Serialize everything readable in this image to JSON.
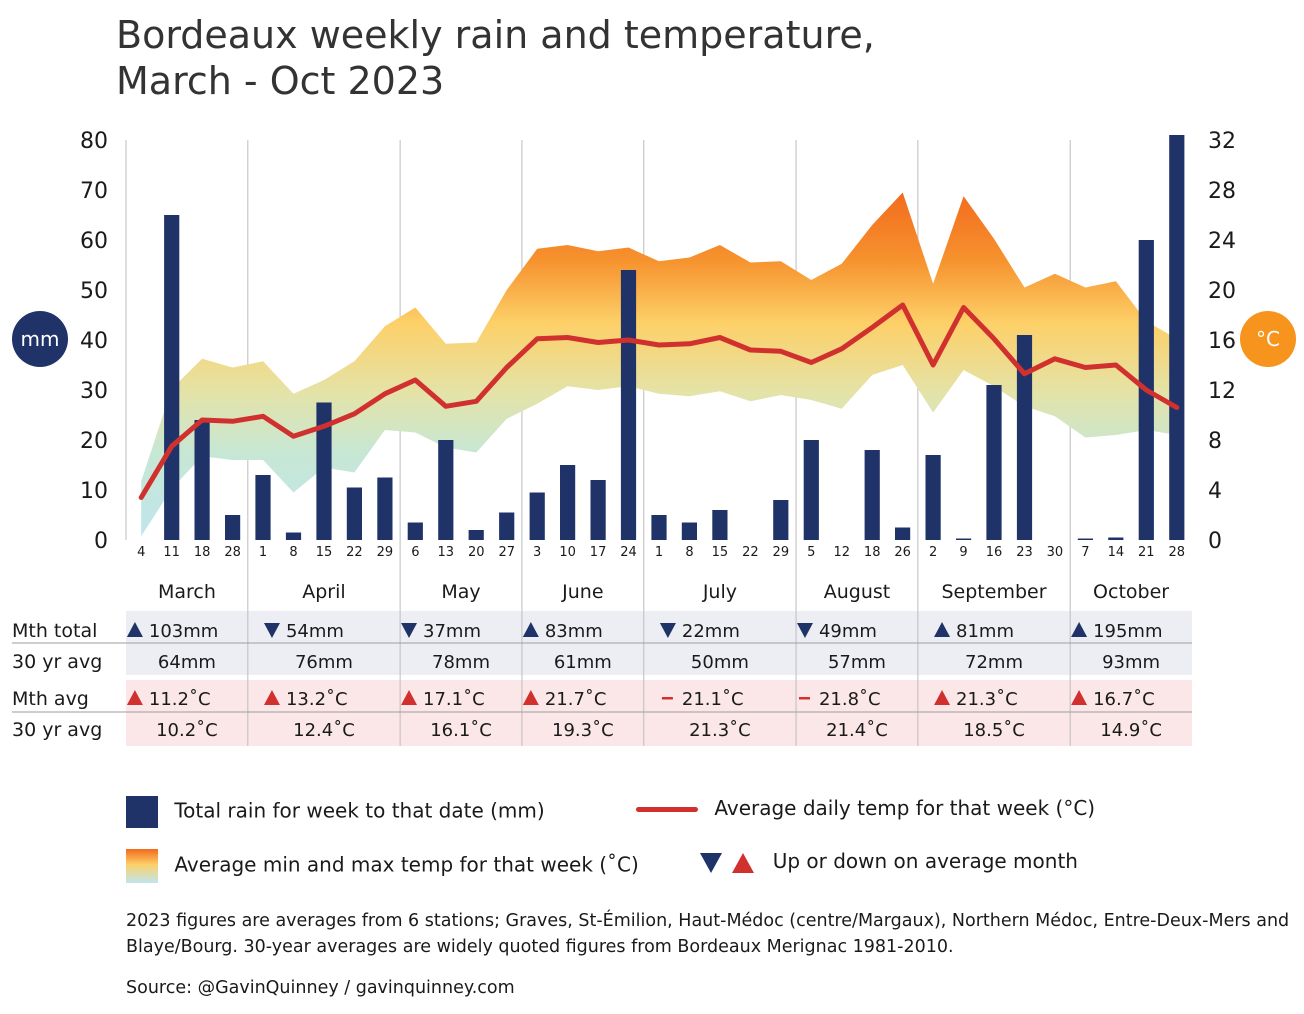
{
  "title_line1": "Bordeaux weekly rain and temperature,",
  "title_line2": "March - Oct 2023",
  "left_axis_badge": "mm",
  "right_axis_badge": "°C",
  "colors": {
    "rain_bar": "#1f3368",
    "avg_temp_line": "#d1312e",
    "band_hot": "#f26a1d",
    "band_mid": "#fdd068",
    "band_cool": "#bfe6ee",
    "up_marker": "#d1312e",
    "down_marker": "#1f3368",
    "mm_badge": "#1f3368",
    "c_badge": "#f7941d",
    "rain_row_bg": "#edeef3",
    "temp_row_bg": "#fbe7e7"
  },
  "chart_data": {
    "type": "bar",
    "x_ticks": [
      "4",
      "11",
      "18",
      "28",
      "1",
      "8",
      "15",
      "22",
      "29",
      "6",
      "13",
      "20",
      "27",
      "3",
      "10",
      "17",
      "24",
      "1",
      "8",
      "15",
      "22",
      "29",
      "5",
      "12",
      "18",
      "26",
      "2",
      "9",
      "16",
      "23",
      "30",
      "7",
      "14",
      "21",
      "28"
    ],
    "months": [
      "March",
      "April",
      "May",
      "June",
      "July",
      "August",
      "September",
      "October"
    ],
    "month_week_counts": [
      4,
      5,
      4,
      4,
      5,
      4,
      5,
      4
    ],
    "y_left": {
      "label": "mm",
      "min": 0,
      "max": 80,
      "ticks": [
        0,
        10,
        20,
        30,
        40,
        50,
        60,
        70,
        80
      ]
    },
    "y_right": {
      "label": "°C",
      "min": 0,
      "max": 32,
      "ticks": [
        0,
        4,
        8,
        12,
        16,
        20,
        24,
        28,
        32
      ]
    },
    "series": [
      {
        "name": "Total rain for week to that date (mm)",
        "type": "bar",
        "axis": "left",
        "values": [
          0,
          65,
          24,
          5,
          13,
          1.5,
          27.5,
          10.5,
          12.5,
          3.5,
          20,
          2,
          5.5,
          9.5,
          15,
          12,
          54,
          5,
          3.5,
          6,
          0,
          8,
          20,
          0,
          18,
          2.5,
          17,
          0.3,
          31,
          41,
          0,
          0.3,
          0.5,
          60,
          81
        ]
      },
      {
        "name": "Average daily temp for that week (°C)",
        "type": "line",
        "axis": "right",
        "values": [
          3.4,
          7.5,
          9.6,
          9.5,
          9.9,
          8.3,
          9.1,
          10.1,
          11.7,
          12.8,
          10.7,
          11.1,
          13.8,
          16.1,
          16.2,
          15.8,
          16.0,
          15.6,
          15.7,
          16.2,
          15.2,
          15.1,
          14.2,
          15.3,
          17.0,
          18.8,
          14.0,
          18.6,
          16.1,
          13.3,
          14.5,
          13.8,
          14.0,
          12.0,
          10.6
        ]
      },
      {
        "name": "Average min and max temp for that week (°C)",
        "type": "area",
        "axis": "right",
        "min": [
          0.3,
          4.1,
          6.7,
          6.4,
          6.4,
          3.8,
          5.8,
          5.4,
          8.8,
          8.6,
          7.4,
          7.0,
          9.7,
          10.9,
          12.3,
          12.0,
          12.3,
          11.7,
          11.5,
          11.9,
          11.1,
          11.6,
          11.2,
          10.5,
          13.2,
          14.0,
          10.2,
          13.6,
          12.3,
          10.7,
          9.9,
          8.2,
          8.4,
          8.8,
          8.4
        ],
        "max": [
          4.7,
          12.1,
          14.5,
          13.8,
          14.3,
          11.7,
          12.8,
          14.3,
          17.1,
          18.6,
          15.7,
          15.8,
          20.0,
          23.3,
          23.6,
          23.1,
          23.4,
          22.3,
          22.6,
          23.6,
          22.2,
          22.3,
          20.8,
          22.1,
          25.2,
          27.8,
          20.5,
          27.5,
          24.1,
          20.2,
          21.3,
          20.2,
          20.7,
          17.5,
          16.1
        ]
      }
    ],
    "legend": [
      {
        "label": "Total rain for week to that date (mm)",
        "kind": "bar-swatch"
      },
      {
        "label": "Average daily temp for that week (°C)",
        "kind": "line-swatch"
      },
      {
        "label": "Average min and max temp for that week (˚C)",
        "kind": "gradient-swatch"
      },
      {
        "label": "Up or down on average month",
        "kind": "triangles"
      }
    ],
    "table": {
      "rows": [
        "Mth total",
        "30 yr avg",
        "Mth avg",
        "30 yr avg"
      ],
      "rain_month_total": [
        {
          "dir": "up",
          "text": "103mm"
        },
        {
          "dir": "down",
          "text": "54mm"
        },
        {
          "dir": "down",
          "text": "37mm"
        },
        {
          "dir": "up",
          "text": "83mm"
        },
        {
          "dir": "down",
          "text": "22mm"
        },
        {
          "dir": "down",
          "text": "49mm"
        },
        {
          "dir": "up",
          "text": "81mm"
        },
        {
          "dir": "up",
          "text": "195mm"
        }
      ],
      "rain_30yr_avg": [
        "64mm",
        "76mm",
        "78mm",
        "61mm",
        "50mm",
        "57mm",
        "72mm",
        "93mm"
      ],
      "temp_month_avg": [
        {
          "dir": "up",
          "text": "11.2˚C"
        },
        {
          "dir": "up",
          "text": "13.2˚C"
        },
        {
          "dir": "up",
          "text": "17.1˚C"
        },
        {
          "dir": "up",
          "text": "21.7˚C"
        },
        {
          "dir": "same",
          "text": "21.1˚C"
        },
        {
          "dir": "same",
          "text": "21.8˚C"
        },
        {
          "dir": "up",
          "text": "21.3˚C"
        },
        {
          "dir": "up",
          "text": "16.7˚C"
        }
      ],
      "temp_30yr_avg": [
        "10.2˚C",
        "12.4˚C",
        "16.1˚C",
        "19.3˚C",
        "21.3˚C",
        "21.4˚C",
        "18.5˚C",
        "14.9˚C"
      ]
    }
  },
  "legend_texts": {
    "rain": "Total rain for week to that date (mm)",
    "temp_line": "Average daily temp for that week (°C)",
    "band": "Average min and max temp for that week (˚C)",
    "updown": "Up or down on average month"
  },
  "note": "2023 figures are averages from 6 stations; Graves, St-Émilion, Haut-Médoc (centre/Margaux), Northern Médoc, Entre-Deux-Mers and Blaye/Bourg. 30-year averages are widely quoted figures from Bordeaux Merignac 1981-2010.",
  "source": "Source: @GavinQuinney / gavinquinney.com"
}
